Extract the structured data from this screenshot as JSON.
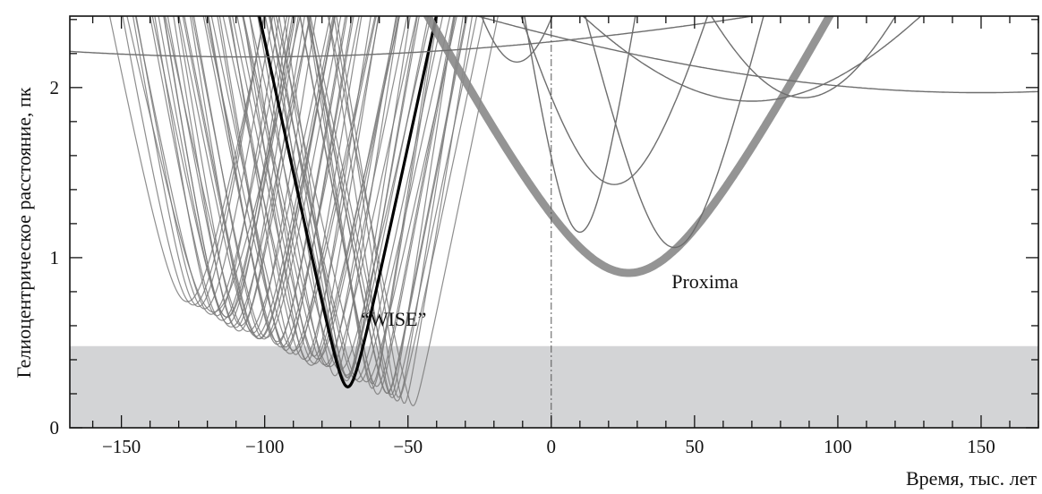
{
  "chart_data": {
    "type": "line",
    "xlabel": "Время, тыс. лет",
    "ylabel": "Гелиоцентрическое расстояние, пк",
    "xlim": [
      -168,
      170
    ],
    "ylim": [
      0,
      2.42
    ],
    "xticks": [
      -150,
      -100,
      -50,
      0,
      50,
      100,
      150
    ],
    "xtick_labels": [
      "−150",
      "−100",
      "−50",
      "0",
      "50",
      "100",
      "150"
    ],
    "yticks": [
      0,
      1,
      2
    ],
    "ytick_labels": [
      "0",
      "1",
      "2"
    ],
    "shaded_band": {
      "y_from": 0,
      "y_to": 0.48,
      "color": "#d3d4d6"
    },
    "vertical_reference": {
      "x": 0,
      "style": "dash-dot"
    },
    "annotations": [
      {
        "text": "“WISE”",
        "x": -55,
        "y": 0.6
      },
      {
        "text": "Proxima",
        "x": 42,
        "y": 0.82
      }
    ],
    "series": [
      {
        "group": "wise-clones",
        "color": "#7a7a7a",
        "width": 1.2,
        "count": 60,
        "min_time_range": [
          -125,
          -50
        ],
        "min_dist_range": [
          0.13,
          0.72
        ]
      },
      {
        "group": "wise-nominal",
        "color": "#000000",
        "width": 3.2,
        "t_min": -71,
        "d_min": 0.24
      },
      {
        "group": "proxima",
        "color": "#888888",
        "width": 9,
        "t_min": 27,
        "d_min": 0.91
      },
      {
        "group": "other-stars",
        "color": "#6e6e6e",
        "width": 1.4,
        "curves": [
          {
            "t_min": 10,
            "d_min": 1.15
          },
          {
            "t_min": 22,
            "d_min": 1.43
          },
          {
            "t_min": 43,
            "d_min": 1.06
          },
          {
            "t_min": -12,
            "d_min": 2.15
          },
          {
            "t_min": 70,
            "d_min": 1.92
          },
          {
            "t_min": 88,
            "d_min": 1.94
          },
          {
            "t_min": 150,
            "d_min": 1.97
          },
          {
            "t_min": -105,
            "d_min": 2.18
          }
        ]
      }
    ]
  }
}
